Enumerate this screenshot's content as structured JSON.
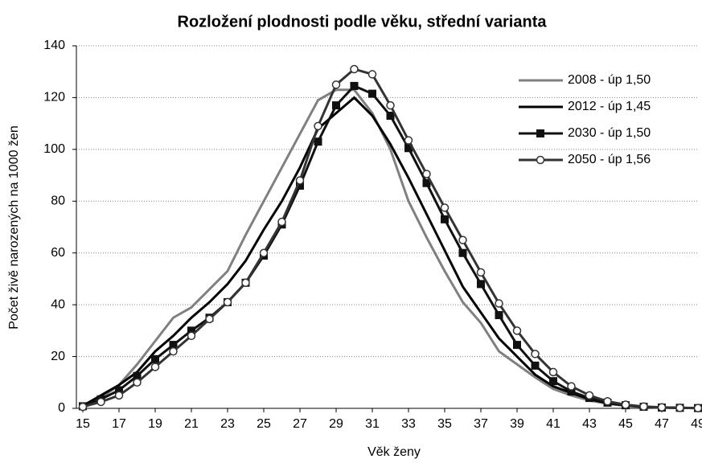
{
  "chart_data": {
    "type": "line",
    "title": "Rozložení plodnosti podle věku, střední varianta",
    "xlabel": "Věk ženy",
    "ylabel": "Počet živě narozených na 1000 žen",
    "x": [
      15,
      16,
      17,
      18,
      19,
      20,
      21,
      22,
      23,
      24,
      25,
      26,
      27,
      28,
      29,
      30,
      31,
      32,
      33,
      34,
      35,
      36,
      37,
      38,
      39,
      40,
      41,
      42,
      43,
      44,
      45,
      46,
      47,
      48,
      49
    ],
    "xlim": [
      15,
      49
    ],
    "xticks": [
      15,
      17,
      19,
      21,
      23,
      25,
      27,
      29,
      31,
      33,
      35,
      37,
      39,
      41,
      43,
      45,
      47,
      49
    ],
    "ylim": [
      0,
      140
    ],
    "yticks": [
      0,
      20,
      40,
      60,
      80,
      100,
      120,
      140
    ],
    "grid": true,
    "legend": "upper right",
    "series": [
      {
        "name": "2008 - úp 1,50",
        "color": "#808080",
        "marker": "none",
        "values": [
          0.5,
          4,
          9,
          17,
          26,
          35,
          39,
          46,
          53,
          67,
          80,
          93,
          106,
          119,
          123,
          123,
          114,
          100,
          80,
          66,
          53,
          41,
          33,
          22,
          17,
          12,
          7.5,
          5,
          3,
          1.8,
          1,
          0.6,
          0.3,
          0.2,
          0.1
        ]
      },
      {
        "name": "2012 - úp 1,45",
        "color": "#000000",
        "marker": "none",
        "values": [
          1,
          5,
          9,
          14,
          22,
          28,
          35,
          41,
          48,
          57,
          69,
          80,
          93,
          108,
          114,
          120,
          113,
          102,
          89,
          75,
          61,
          47,
          37,
          27,
          20,
          13,
          8.5,
          6,
          3.5,
          2,
          1.1,
          0.6,
          0.3,
          0.2,
          0.1
        ]
      },
      {
        "name": "2030 - úp 1,50",
        "color": "#111111",
        "marker": "square",
        "values": [
          0.8,
          3.5,
          7,
          12.5,
          19,
          24.5,
          30,
          35,
          41,
          48.5,
          59,
          71,
          86,
          103,
          117,
          124.5,
          121.5,
          113,
          100.5,
          87,
          73,
          60,
          48,
          36,
          24.5,
          16.5,
          10.5,
          6.5,
          4,
          2.2,
          1.2,
          0.6,
          0.3,
          0.2,
          0.1
        ]
      },
      {
        "name": "2050 - úp 1,56",
        "color": "#333333",
        "marker": "circle",
        "values": [
          0.6,
          2.5,
          5,
          10,
          16,
          22,
          28,
          34.5,
          41,
          48.5,
          60,
          72,
          88,
          109,
          125,
          131,
          129,
          117,
          103.5,
          90.5,
          77.5,
          65,
          52.5,
          40.5,
          30,
          21,
          14,
          8.5,
          5,
          2.7,
          1.4,
          0.7,
          0.4,
          0.2,
          0.1
        ]
      }
    ]
  }
}
